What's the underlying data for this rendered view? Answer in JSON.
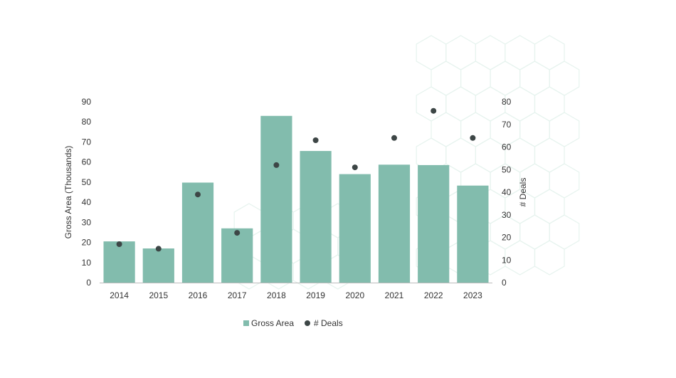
{
  "colors": {
    "bar": "#82bcad",
    "dot": "#3d4646",
    "text": "#333333",
    "axis": "#bbbbbb",
    "pattern": "#e6f3ee"
  },
  "legend": {
    "bar_label": "Gross Area",
    "dot_label": "# Deals",
    "position": "bottom-center"
  },
  "chart_data": {
    "type": "bar",
    "title": "",
    "categories": [
      "2014",
      "2015",
      "2016",
      "2017",
      "2018",
      "2019",
      "2020",
      "2021",
      "2022",
      "2023"
    ],
    "series": [
      {
        "name": "Gross Area",
        "type": "bar",
        "axis": "left",
        "values": [
          20.5,
          17,
          49.8,
          27,
          83,
          65.5,
          54,
          58.7,
          58.5,
          48.3
        ]
      },
      {
        "name": "# Deals",
        "type": "scatter",
        "axis": "right",
        "values": [
          17,
          15,
          39,
          22,
          52,
          63,
          51,
          64,
          76,
          64
        ]
      }
    ],
    "ylabel": "Gross Area (Thousands)",
    "y2label": "# Deals",
    "ylim": [
      0,
      90
    ],
    "y2lim": [
      0,
      80
    ],
    "yticks": [
      "0",
      "10",
      "20",
      "30",
      "40",
      "50",
      "60",
      "70",
      "80",
      "90"
    ],
    "y2ticks": [
      "0",
      "10",
      "20",
      "30",
      "40",
      "50",
      "60",
      "70",
      "80"
    ],
    "grid": false
  }
}
